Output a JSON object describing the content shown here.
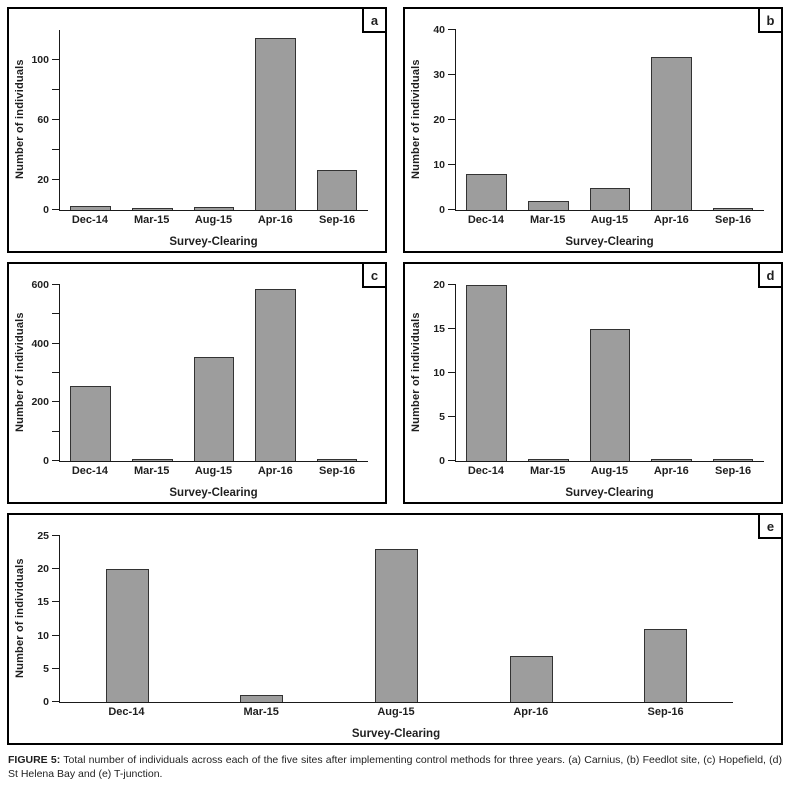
{
  "figure": {
    "caption_label": "FIGURE 5:",
    "caption_text": "Total number of individuals across each of the five sites after implementing control methods for three years. (a) Carnius, (b) Feedlot site, (c) Hopefield, (d) St Helena Bay and (e) T-junction."
  },
  "colors": {
    "bar_fill": "#9d9d9d",
    "bar_border": "#333333",
    "axis": "#1a1a1a",
    "panel_border": "#000000",
    "text": "#1f1f1f"
  },
  "chart_data": [
    {
      "id": "a",
      "panel_label": "a",
      "site": "Carnius",
      "type": "bar",
      "categories": [
        "Dec-14",
        "Mar-15",
        "Aug-15",
        "Apr-16",
        "Sep-16"
      ],
      "values": [
        3,
        0.5,
        2,
        115,
        27
      ],
      "title": "",
      "xlabel": "Survey-Clearing",
      "ylabel": "Number of individuals",
      "ylim": [
        0,
        120
      ],
      "bar_width_pct": 66,
      "grid": false,
      "legend": "none",
      "yticks": [
        {
          "v": 0,
          "label": "0"
        },
        {
          "v": 20,
          "label": "20"
        },
        {
          "v": 40,
          "label": ""
        },
        {
          "v": 60,
          "label": "60"
        },
        {
          "v": 80,
          "label": ""
        },
        {
          "v": 100,
          "label": "100"
        }
      ]
    },
    {
      "id": "b",
      "panel_label": "b",
      "site": "Feedlot site",
      "type": "bar",
      "categories": [
        "Dec-14",
        "Mar-15",
        "Aug-15",
        "Apr-16",
        "Sep-16"
      ],
      "values": [
        8,
        2,
        5,
        34,
        0.2
      ],
      "title": "",
      "xlabel": "Survey-Clearing",
      "ylabel": "Number of individuals",
      "ylim": [
        0,
        40
      ],
      "bar_width_pct": 66,
      "grid": false,
      "legend": "none",
      "yticks": [
        {
          "v": 0,
          "label": "0"
        },
        {
          "v": 10,
          "label": "10"
        },
        {
          "v": 20,
          "label": "20"
        },
        {
          "v": 30,
          "label": "30"
        },
        {
          "v": 40,
          "label": "40"
        }
      ]
    },
    {
      "id": "c",
      "panel_label": "c",
      "site": "Hopefield",
      "type": "bar",
      "categories": [
        "Dec-14",
        "Mar-15",
        "Aug-15",
        "Apr-16",
        "Sep-16"
      ],
      "values": [
        255,
        5,
        355,
        585,
        5
      ],
      "title": "",
      "xlabel": "Survey-Clearing",
      "ylabel": "Number of individuals",
      "ylim": [
        0,
        600
      ],
      "bar_width_pct": 66,
      "grid": false,
      "legend": "none",
      "yticks": [
        {
          "v": 0,
          "label": "0"
        },
        {
          "v": 100,
          "label": ""
        },
        {
          "v": 200,
          "label": "200"
        },
        {
          "v": 300,
          "label": ""
        },
        {
          "v": 400,
          "label": "400"
        },
        {
          "v": 500,
          "label": ""
        },
        {
          "v": 600,
          "label": "600"
        }
      ]
    },
    {
      "id": "d",
      "panel_label": "d",
      "site": "St Helena Bay",
      "type": "bar",
      "categories": [
        "Dec-14",
        "Mar-15",
        "Aug-15",
        "Apr-16",
        "Sep-16"
      ],
      "values": [
        20,
        0.2,
        15,
        0.15,
        0.15
      ],
      "title": "",
      "xlabel": "Survey-Clearing",
      "ylabel": "Number of individuals",
      "ylim": [
        0,
        20
      ],
      "bar_width_pct": 66,
      "grid": false,
      "legend": "none",
      "yticks": [
        {
          "v": 0,
          "label": "0"
        },
        {
          "v": 5,
          "label": "5"
        },
        {
          "v": 10,
          "label": "10"
        },
        {
          "v": 15,
          "label": "15"
        },
        {
          "v": 20,
          "label": "20"
        }
      ]
    },
    {
      "id": "e",
      "panel_label": "e",
      "site": "T-junction",
      "type": "bar",
      "categories": [
        "Dec-14",
        "Mar-15",
        "Aug-15",
        "Apr-16",
        "Sep-16"
      ],
      "values": [
        20,
        1,
        23,
        7,
        11
      ],
      "title": "",
      "xlabel": "Survey-Clearing",
      "ylabel": "Number of individuals",
      "ylim": [
        0,
        25
      ],
      "bar_width_pct": 32,
      "grid": false,
      "legend": "none",
      "yticks": [
        {
          "v": 0,
          "label": "0"
        },
        {
          "v": 5,
          "label": "5"
        },
        {
          "v": 10,
          "label": "10"
        },
        {
          "v": 15,
          "label": "15"
        },
        {
          "v": 20,
          "label": "20"
        },
        {
          "v": 25,
          "label": "25"
        }
      ]
    }
  ]
}
